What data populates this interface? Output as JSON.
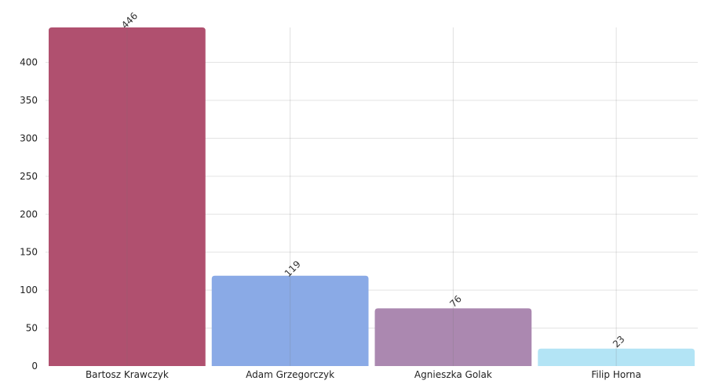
{
  "chart_data": {
    "type": "bar",
    "title": "",
    "xlabel": "",
    "ylabel": "",
    "categories": [
      "Bartosz Krawczyk",
      "Adam Grzegorczyk",
      "Agnieszka Golak",
      "Filip Horna"
    ],
    "values": [
      446,
      119,
      76,
      23
    ],
    "data_labels": [
      "446",
      "119",
      "76",
      "23"
    ],
    "colors": [
      "#b0506f",
      "#8aaae6",
      "#ab88b0",
      "#b3e4f5"
    ],
    "ylim": [
      0,
      446
    ],
    "yticks": [
      0,
      50,
      100,
      150,
      200,
      250,
      300,
      350,
      400
    ],
    "ytick_labels": [
      "0",
      "50",
      "100",
      "150",
      "200",
      "250",
      "300",
      "350",
      "400"
    ],
    "grid": true,
    "legend": "none"
  }
}
